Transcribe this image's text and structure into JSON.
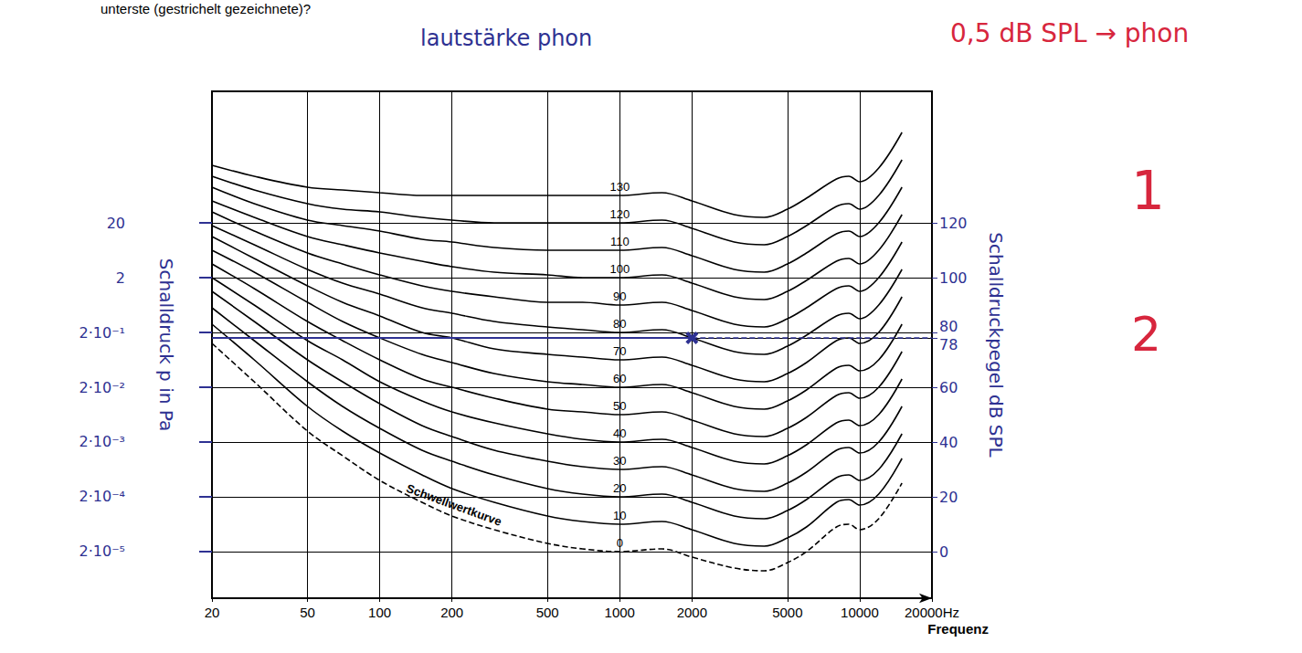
{
  "chart_data": {
    "type": "line",
    "question": "unterste (gestrichelt gezeichnete)?",
    "title": "lautstärke phon",
    "x_label": "Frequenz",
    "y_label": "Schalldruckpegel dB SPL",
    "y2_label": "Schalldruck p in Pa",
    "log": [
      "x",
      "y2"
    ],
    "grid": true,
    "color": "#000000",
    "xlim": [
      20,
      20000
    ],
    "xticks": [
      20,
      50,
      100,
      200,
      500,
      1000,
      2000,
      5000,
      10000,
      {
        "value": 20000,
        "label": "20000Hz"
      }
    ],
    "ylim": [
      -17,
      168
    ],
    "yticks": [
      0,
      20,
      40,
      60,
      78,
      80,
      100,
      120
    ],
    "y2lim": [
      2.825e-06,
      5024
    ],
    "y2ticks": [
      {
        "value": 2e-05,
        "label": "2·10⁻⁵"
      },
      {
        "value": 0.0002,
        "label": "2·10⁻⁴"
      },
      {
        "value": 0.002,
        "label": "2·10⁻³"
      },
      {
        "value": 0.02,
        "label": "2·10⁻²"
      },
      {
        "value": 0.2,
        "label": "2·10⁻¹"
      },
      2,
      20
    ],
    "x": [
      20,
      30,
      50,
      70,
      100,
      150,
      200,
      300,
      500,
      700,
      1000,
      1500,
      2000,
      3000,
      4000,
      5000,
      6000,
      8000,
      9000,
      10000,
      12000,
      15000
    ],
    "series": [
      {
        "name": "130",
        "label_x": 1000,
        "values": [
          141,
          137,
          133,
          132,
          131,
          130,
          130,
          130,
          130,
          130,
          130,
          131,
          128,
          123,
          122,
          125,
          129,
          136,
          137,
          135,
          140,
          153
        ]
      },
      {
        "name": "120",
        "label_x": 1000,
        "values": [
          137,
          132,
          127,
          125,
          124,
          122,
          121,
          120,
          120,
          120,
          120,
          121,
          118,
          113,
          112,
          115,
          119,
          126,
          127,
          125,
          130,
          143
        ]
      },
      {
        "name": "110",
        "label_x": 1000,
        "values": [
          133,
          127,
          121,
          119,
          117,
          114,
          113,
          111,
          110,
          110,
          110,
          111,
          108,
          103,
          102,
          105,
          109,
          116,
          117,
          115,
          120,
          133
        ]
      },
      {
        "name": "100",
        "label_x": 1000,
        "values": [
          128,
          122,
          115,
          112,
          109,
          106,
          104,
          102,
          101,
          100,
          100,
          101,
          98,
          93,
          92,
          95,
          99,
          106,
          107,
          105,
          110,
          123
        ]
      },
      {
        "name": "90",
        "label_x": 1000,
        "values": [
          124,
          117,
          109,
          105,
          101,
          97,
          95,
          93,
          91,
          91,
          90,
          91,
          88,
          83,
          82,
          85,
          89,
          96,
          97,
          95,
          100,
          113
        ]
      },
      {
        "name": "80",
        "label_x": 1000,
        "values": [
          119,
          112,
          103,
          98,
          94,
          89,
          87,
          84,
          82,
          81,
          80,
          81,
          78,
          73,
          72,
          75,
          79,
          86,
          87,
          85,
          90,
          103
        ]
      },
      {
        "name": "70",
        "label_x": 1000,
        "values": [
          115,
          107,
          97,
          91,
          86,
          80,
          78,
          74,
          72,
          71,
          70,
          71,
          68,
          63,
          62,
          65,
          69,
          77,
          78,
          76,
          80,
          93
        ]
      },
      {
        "name": "60",
        "label_x": 1000,
        "values": [
          110,
          102,
          91,
          84,
          78,
          72,
          69,
          65,
          62,
          61,
          60,
          61,
          58,
          53,
          52,
          55,
          59,
          67,
          68,
          66,
          70,
          83
        ]
      },
      {
        "name": "50",
        "label_x": 1000,
        "values": [
          105,
          96,
          84,
          77,
          70,
          63,
          60,
          56,
          52,
          51,
          50,
          51,
          48,
          43,
          42,
          45,
          49,
          57,
          58,
          56,
          60,
          73
        ]
      },
      {
        "name": "40",
        "label_x": 1000,
        "values": [
          100,
          90,
          77,
          70,
          62,
          55,
          51,
          47,
          43,
          41,
          40,
          41,
          38,
          33,
          32,
          35,
          39,
          47,
          48,
          46,
          50,
          63
        ]
      },
      {
        "name": "30",
        "label_x": 1000,
        "values": [
          95,
          84,
          70,
          62,
          54,
          46,
          42,
          37,
          33,
          31,
          30,
          31,
          28,
          23,
          22,
          25,
          29,
          37,
          38,
          36,
          40,
          53
        ]
      },
      {
        "name": "20",
        "label_x": 1000,
        "values": [
          89,
          77,
          62,
          53,
          45,
          37,
          33,
          28,
          23,
          21,
          20,
          21,
          18,
          13,
          12,
          15,
          19,
          27,
          28,
          26,
          30,
          43
        ]
      },
      {
        "name": "10",
        "label_x": 1000,
        "values": [
          83,
          70,
          53,
          44,
          36,
          28,
          23,
          18,
          13,
          11,
          10,
          11,
          8,
          3,
          2,
          5,
          9,
          18,
          19,
          17,
          21,
          34
        ]
      },
      {
        "name": "0",
        "label_x": 1000,
        "caption": "Schwellwertkurve",
        "caption_x": 200,
        "line_style": "dashed",
        "values": [
          76,
          62,
          44,
          35,
          26,
          18,
          13,
          8,
          3,
          1,
          0,
          1,
          -2,
          -6,
          -7,
          -4,
          0,
          9,
          10,
          8,
          12,
          25
        ]
      }
    ],
    "level_line": {
      "y": 78,
      "x": [
        20,
        2000,
        20000
      ],
      "marker": "x",
      "color": "#2e3192"
    },
    "annotations": [
      {
        "text": "0,5 dB SPL → phon",
        "color": "#d7263d"
      },
      {
        "text": "1",
        "color": "#d7263d"
      },
      {
        "text": "2",
        "color": "#d7263d"
      }
    ]
  }
}
